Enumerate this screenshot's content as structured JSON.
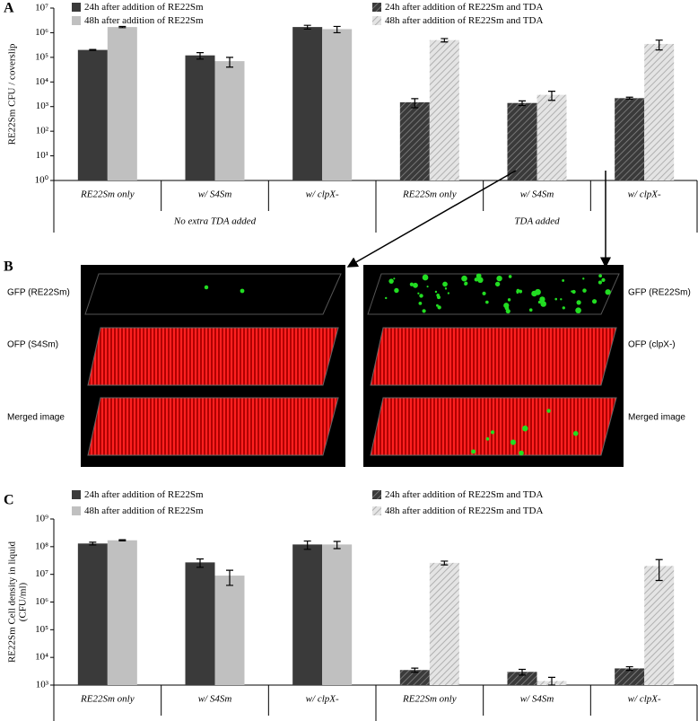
{
  "chart_data": [
    {
      "type": "bar",
      "panel": "A",
      "ylabel": [
        "RE22Sm CFU / coverslip"
      ],
      "log_scale": true,
      "categories": [
        "RE22Sm only",
        "w/ S4Sm",
        "w/ clpX-",
        "RE22Sm only",
        "w/ S4Sm",
        "w/ clpX-"
      ],
      "groups": [
        {
          "label": "No extra TDA added",
          "span": 3
        },
        {
          "label": "TDA added",
          "span": 3
        }
      ],
      "ylim": [
        1,
        10000000
      ],
      "yticks": [
        {
          "value": 1,
          "label": "10⁰"
        },
        {
          "value": 10,
          "label": "10¹"
        },
        {
          "value": 100,
          "label": "10²"
        },
        {
          "value": 1000,
          "label": "10³"
        },
        {
          "value": 10000,
          "label": "10⁴"
        },
        {
          "value": 100000,
          "label": "10⁵"
        },
        {
          "value": 1000000,
          "label": "10⁶"
        },
        {
          "value": 10000000,
          "label": "10⁷"
        }
      ],
      "series": [
        {
          "name": "24h after addition of RE22Sm",
          "color": "#3a3a3a",
          "hatched": false,
          "slot": 0,
          "values": [
            200000,
            120000,
            1700000,
            null,
            null,
            null
          ],
          "errors": [
            8000,
            35000,
            300000,
            null,
            null,
            null
          ]
        },
        {
          "name": "48h after addition of RE22Sm",
          "color": "#c0c0c0",
          "hatched": false,
          "slot": 1,
          "values": [
            1700000,
            70000,
            1400000,
            null,
            null,
            null
          ],
          "errors": [
            100000,
            30000,
            400000,
            null,
            null,
            null
          ]
        },
        {
          "name": "24h after addition of RE22Sm and TDA",
          "color": "#3a3a3a",
          "hatched": true,
          "slot": 0,
          "values": [
            null,
            null,
            null,
            1500,
            1400,
            2200
          ],
          "errors": [
            null,
            null,
            null,
            600,
            300,
            200
          ]
        },
        {
          "name": "48h after addition of RE22Sm and TDA",
          "color": "#c0c0c0",
          "hatched": true,
          "slot": 1,
          "values": [
            null,
            null,
            null,
            500000,
            3000,
            350000
          ],
          "errors": [
            null,
            null,
            null,
            80000,
            1200,
            150000
          ]
        }
      ]
    },
    {
      "type": "bar",
      "panel": "C",
      "ylabel": [
        "RE22Sm Cell density in liquid",
        "(CFU/ml)"
      ],
      "log_scale": true,
      "categories": [
        "RE22Sm only",
        "w/ S4Sm",
        "w/ clpX-",
        "RE22Sm only",
        "w/ S4Sm",
        "w/ clpX-"
      ],
      "groups": [
        {
          "label": "No extra TDA added",
          "span": 3
        },
        {
          "label": "TDA added",
          "span": 3
        }
      ],
      "ylim": [
        1000,
        1000000000
      ],
      "yticks": [
        {
          "value": 1000,
          "label": "10³"
        },
        {
          "value": 10000,
          "label": "10⁴"
        },
        {
          "value": 100000,
          "label": "10⁵"
        },
        {
          "value": 1000000,
          "label": "10⁶"
        },
        {
          "value": 10000000,
          "label": "10⁷"
        },
        {
          "value": 100000000,
          "label": "10⁸"
        },
        {
          "value": 1000000000,
          "label": "10⁹"
        }
      ],
      "series": [
        {
          "name": "24h after addition of RE22Sm",
          "color": "#3a3a3a",
          "hatched": false,
          "slot": 0,
          "values": [
            130000000,
            27000000,
            120000000,
            null,
            null,
            null
          ],
          "errors": [
            15000000,
            9000000,
            40000000,
            null,
            null,
            null
          ]
        },
        {
          "name": "48h after addition of RE22Sm",
          "color": "#c0c0c0",
          "hatched": false,
          "slot": 1,
          "values": [
            170000000,
            9000000,
            120000000,
            null,
            null,
            null
          ],
          "errors": [
            8000000,
            5000000,
            35000000,
            null,
            null,
            null
          ]
        },
        {
          "name": "24h after addition of RE22Sm and TDA",
          "color": "#3a3a3a",
          "hatched": true,
          "slot": 0,
          "values": [
            null,
            null,
            null,
            3500,
            3000,
            4000
          ],
          "errors": [
            null,
            null,
            null,
            600,
            700,
            600
          ]
        },
        {
          "name": "48h after addition of RE22Sm and TDA",
          "color": "#c0c0c0",
          "hatched": true,
          "slot": 1,
          "values": [
            null,
            null,
            null,
            26000000,
            1400,
            20000000
          ],
          "errors": [
            null,
            null,
            null,
            4000000,
            500,
            14000000
          ]
        }
      ]
    }
  ],
  "panel_b": {
    "label": "B",
    "left_labels": [
      "GFP (RE22Sm)",
      "OFP (S4Sm)",
      "Merged image"
    ],
    "right_labels": [
      "GFP (RE22Sm)",
      "OFP (clpX-)",
      "Merged image"
    ]
  }
}
